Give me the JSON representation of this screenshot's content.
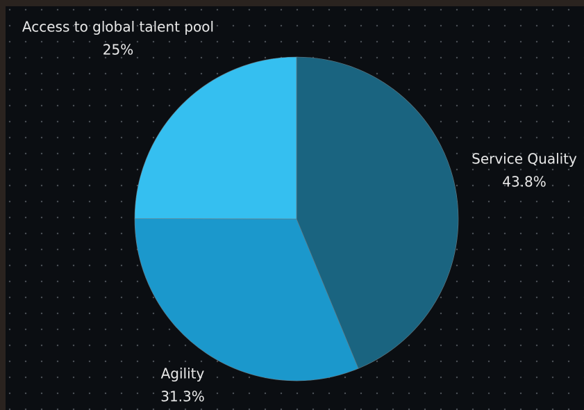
{
  "chart_data": {
    "type": "pie",
    "categories": [
      "Service Quality",
      "Agility",
      "Access to global talent pool"
    ],
    "values": [
      43.8,
      31.3,
      25
    ],
    "value_labels": [
      "43.8%",
      "31.3%",
      "25%"
    ],
    "colors": [
      "#1a6480",
      "#1b98cc",
      "#35bff0"
    ]
  }
}
